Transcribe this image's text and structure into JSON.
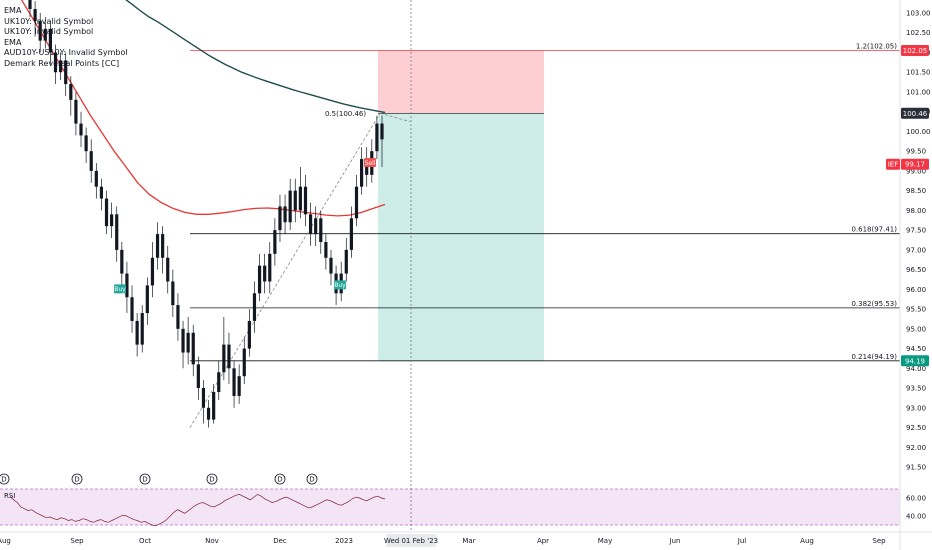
{
  "legend": {
    "items": [
      "EMA",
      "UK10Y: Invalid Symbol",
      "UK10Y: Invalid Symbol",
      "EMA",
      "AUD10Y-US10Y: Invalid Symbol",
      "Demark Reversal Points [CC]"
    ]
  },
  "rsi_label": "RSI",
  "crosshair_date": "Wed 01 Feb '23",
  "chart_data": {
    "type": "candlestick",
    "symbol": "IEF",
    "y_axis": {
      "ticks": [
        "103.00",
        "102.50",
        "102.00",
        "101.50",
        "101.00",
        "100.50",
        "100.00",
        "99.50",
        "99.00",
        "98.50",
        "98.00",
        "97.50",
        "97.00",
        "96.50",
        "96.00",
        "95.50",
        "95.00",
        "94.50",
        "94.00",
        "93.50",
        "93.00",
        "92.50",
        "92.00",
        "91.50"
      ],
      "range": [
        91.2,
        103.2
      ]
    },
    "x_axis": {
      "ticks": [
        "Aug",
        "Sep",
        "Oct",
        "Nov",
        "Dec",
        "2023",
        "Mar",
        "Apr",
        "May",
        "Jun",
        "Jul",
        "Aug",
        "Sep"
      ]
    },
    "price_tags": [
      {
        "label": "102.05",
        "value": 102.05,
        "color": "#f23645"
      },
      {
        "label": "100.46",
        "value": 100.46,
        "color": "#2a2e39"
      },
      {
        "label": "99.17",
        "value": 99.17,
        "color": "#f23645",
        "prefix": "IEF"
      },
      {
        "label": "94.19",
        "value": 94.19,
        "color": "#089981"
      }
    ],
    "fib_levels": [
      {
        "label": "1.2(102.05)",
        "value": 102.05,
        "color": "#f23645"
      },
      {
        "label": "0.618(97.41)",
        "value": 97.41,
        "color": "#131722"
      },
      {
        "label": "0.382(95.53)",
        "value": 95.53,
        "color": "#131722"
      },
      {
        "label": "0.214(94.19)",
        "value": 94.19,
        "color": "#131722"
      }
    ],
    "fib_mid_label": {
      "label": "0.5(100.46)",
      "value": 100.46
    },
    "position": {
      "entry": 100.46,
      "stop": 102.05,
      "target": 94.19
    },
    "signals": [
      "Buy",
      "Buy",
      "Sell"
    ],
    "rsi": {
      "ticks": [
        "60.00",
        "40.00"
      ],
      "upper": 70,
      "lower": 30
    },
    "candles": [
      [
        103.5,
        103.1,
        103.7,
        102.9
      ],
      [
        103.1,
        102.8,
        103.3,
        102.4
      ],
      [
        102.8,
        102.3,
        103.0,
        102.0
      ],
      [
        102.3,
        102.6,
        102.9,
        102.1
      ],
      [
        102.6,
        102.0,
        102.8,
        101.7
      ],
      [
        102.0,
        101.5,
        102.2,
        101.2
      ],
      [
        101.5,
        101.8,
        102.0,
        101.3
      ],
      [
        101.8,
        101.2,
        102.0,
        100.9
      ],
      [
        101.2,
        100.8,
        101.4,
        100.4
      ],
      [
        100.8,
        100.2,
        101.0,
        99.9
      ],
      [
        100.2,
        99.9,
        100.5,
        99.6
      ],
      [
        99.9,
        99.5,
        100.1,
        99.2
      ],
      [
        99.5,
        99.0,
        99.8,
        98.7
      ],
      [
        99.0,
        98.6,
        99.2,
        98.3
      ],
      [
        98.6,
        98.3,
        98.8,
        98.0
      ],
      [
        98.3,
        97.6,
        98.5,
        97.4
      ],
      [
        97.6,
        97.9,
        98.2,
        97.3
      ],
      [
        97.9,
        97.0,
        98.1,
        96.7
      ],
      [
        97.0,
        96.4,
        97.2,
        96.1
      ],
      [
        96.4,
        95.8,
        96.7,
        95.4
      ],
      [
        95.8,
        95.2,
        96.1,
        94.9
      ],
      [
        95.2,
        94.6,
        95.4,
        94.3
      ],
      [
        94.6,
        95.4,
        95.6,
        94.4
      ],
      [
        95.4,
        96.1,
        96.3,
        95.1
      ],
      [
        96.1,
        96.8,
        97.2,
        95.8
      ],
      [
        96.8,
        97.4,
        97.7,
        96.5
      ],
      [
        97.4,
        96.8,
        97.6,
        96.4
      ],
      [
        96.8,
        96.2,
        97.1,
        95.9
      ],
      [
        96.2,
        95.6,
        96.5,
        95.3
      ],
      [
        95.6,
        95.0,
        95.9,
        94.7
      ],
      [
        95.0,
        94.4,
        95.2,
        94.0
      ],
      [
        94.4,
        94.9,
        95.3,
        94.1
      ],
      [
        94.9,
        94.1,
        95.1,
        93.8
      ],
      [
        94.1,
        93.5,
        94.3,
        93.2
      ],
      [
        93.5,
        93.0,
        93.7,
        92.6
      ],
      [
        93.0,
        92.7,
        93.2,
        92.5
      ],
      [
        92.7,
        93.4,
        93.6,
        92.6
      ],
      [
        93.4,
        93.9,
        94.2,
        93.2
      ],
      [
        93.9,
        94.6,
        95.3,
        93.7
      ],
      [
        94.6,
        94.0,
        94.9,
        93.6
      ],
      [
        94.0,
        93.3,
        94.2,
        93.0
      ],
      [
        93.3,
        93.8,
        94.1,
        93.1
      ],
      [
        93.8,
        94.5,
        94.8,
        93.6
      ],
      [
        94.5,
        95.2,
        95.5,
        94.3
      ],
      [
        95.2,
        95.9,
        96.2,
        94.9
      ],
      [
        95.9,
        96.6,
        96.9,
        95.7
      ],
      [
        96.6,
        96.2,
        96.9,
        95.9
      ],
      [
        96.2,
        96.9,
        97.2,
        95.9
      ],
      [
        96.9,
        97.5,
        97.8,
        96.6
      ],
      [
        97.5,
        98.1,
        98.4,
        97.2
      ],
      [
        98.1,
        97.7,
        98.4,
        97.4
      ],
      [
        97.7,
        98.5,
        98.8,
        97.5
      ],
      [
        98.5,
        98.0,
        98.8,
        97.7
      ],
      [
        98.0,
        98.6,
        99.1,
        97.8
      ],
      [
        98.6,
        97.9,
        98.9,
        97.6
      ],
      [
        97.9,
        97.4,
        98.2,
        97.1
      ],
      [
        97.4,
        97.8,
        98.1,
        97.1
      ],
      [
        97.8,
        97.2,
        98.0,
        96.9
      ],
      [
        97.2,
        96.8,
        97.4,
        96.5
      ],
      [
        96.8,
        96.4,
        97.0,
        96.1
      ],
      [
        96.4,
        95.9,
        96.6,
        95.6
      ],
      [
        95.9,
        96.4,
        96.7,
        95.7
      ],
      [
        96.4,
        97.0,
        97.3,
        96.2
      ],
      [
        97.0,
        97.8,
        98.1,
        96.8
      ],
      [
        97.8,
        98.6,
        98.9,
        97.6
      ],
      [
        98.6,
        99.3,
        99.6,
        98.4
      ],
      [
        99.3,
        98.9,
        99.6,
        98.6
      ],
      [
        98.9,
        99.5,
        99.8,
        98.7
      ],
      [
        99.5,
        100.2,
        100.4,
        99.3
      ],
      [
        100.2,
        99.8,
        100.4,
        99.1
      ]
    ],
    "ema_long": [
      103.9,
      103.78,
      103.66,
      103.52,
      103.38,
      103.22,
      103.05,
      102.9,
      102.78,
      102.64,
      102.5,
      102.36,
      102.22,
      102.08,
      101.94,
      101.82,
      101.7,
      101.6,
      101.5,
      101.42,
      101.34,
      101.27,
      101.2,
      101.13,
      101.06,
      101.0,
      100.94,
      100.88,
      100.82,
      100.76,
      100.7,
      100.65,
      100.6,
      100.56,
      100.52,
      100.48
    ],
    "ema_short": [
      103.4,
      102.9,
      102.4,
      101.9,
      101.4,
      100.9,
      100.4,
      99.95,
      99.5,
      99.1,
      98.7,
      98.4,
      98.2,
      98.05,
      97.95,
      97.9,
      97.9,
      97.93,
      97.97,
      98.02,
      98.05,
      98.06,
      98.04,
      98.0,
      97.96,
      97.92,
      97.88,
      97.86,
      97.88,
      97.95,
      98.05,
      98.15
    ],
    "rsi_values": [
      62,
      58,
      55,
      50,
      48,
      46,
      47,
      44,
      42,
      40,
      38,
      39,
      37,
      36,
      38,
      37,
      35,
      36,
      34,
      35,
      37,
      36,
      34,
      33,
      35,
      36,
      34,
      33,
      35,
      37,
      39,
      41,
      40,
      38,
      36,
      35,
      33,
      34,
      32,
      30,
      29,
      31,
      33,
      36,
      40,
      44,
      47,
      45,
      43,
      46,
      49,
      52,
      54,
      55,
      53,
      51,
      50,
      52,
      54,
      57,
      59,
      61,
      63,
      64,
      62,
      60,
      58,
      61,
      64,
      62,
      59,
      57,
      55,
      56,
      58,
      60,
      61,
      59,
      57,
      55,
      53,
      51,
      49,
      50,
      52,
      54,
      56,
      58,
      57,
      55,
      53,
      52,
      54,
      56,
      59,
      61,
      60,
      58,
      57,
      59,
      61,
      62,
      60,
      59
    ]
  }
}
